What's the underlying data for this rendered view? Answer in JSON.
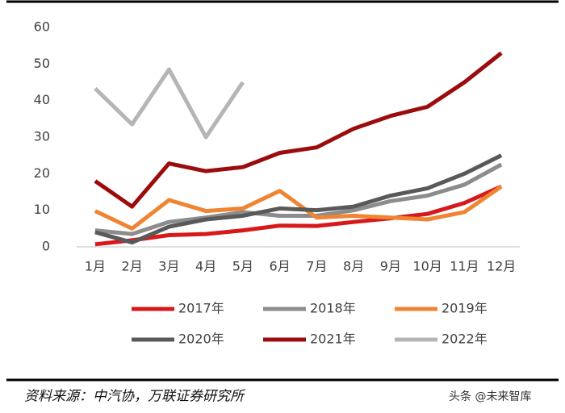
{
  "chart_data": {
    "type": "line",
    "categories": [
      "1月",
      "2月",
      "3月",
      "4月",
      "5月",
      "6月",
      "7月",
      "8月",
      "9月",
      "10月",
      "11月",
      "12月"
    ],
    "series": [
      {
        "name": "2017年",
        "color": "#d7191c",
        "values": [
          0.7,
          1.8,
          3.2,
          3.5,
          4.5,
          5.8,
          5.7,
          6.8,
          7.8,
          9,
          12,
          16.5
        ]
      },
      {
        "name": "2018年",
        "color": "#8c8c8c",
        "values": [
          4.5,
          3.5,
          6.8,
          8,
          9.5,
          8.5,
          8.5,
          10,
          12.5,
          14,
          17,
          22.5
        ]
      },
      {
        "name": "2019年",
        "color": "#ef8533",
        "values": [
          9.8,
          5,
          12.8,
          9.8,
          10.5,
          15.3,
          8,
          8.5,
          8,
          7.5,
          9.5,
          16.5
        ]
      },
      {
        "name": "2020年",
        "color": "#595959",
        "values": [
          4,
          1.2,
          5.5,
          7.5,
          8.5,
          10.5,
          10,
          11,
          14,
          16,
          20,
          25
        ]
      },
      {
        "name": "2021年",
        "color": "#9b0d0d",
        "values": [
          18,
          11,
          22.8,
          20.7,
          21.8,
          25.7,
          27.2,
          32.3,
          35.8,
          38.3,
          45,
          53
        ]
      },
      {
        "name": "2022年",
        "color": "#b5b5b5",
        "values": [
          43.3,
          33.5,
          48.5,
          30,
          45,
          null,
          null,
          null,
          null,
          null,
          null,
          null
        ]
      }
    ],
    "ylim": [
      0,
      60
    ],
    "yticks": [
      0,
      10,
      20,
      30,
      40,
      50,
      60
    ],
    "grid": false
  },
  "source": "资料来源：中汽协，万联证券研究所",
  "watermark": "头条 @未来智库"
}
